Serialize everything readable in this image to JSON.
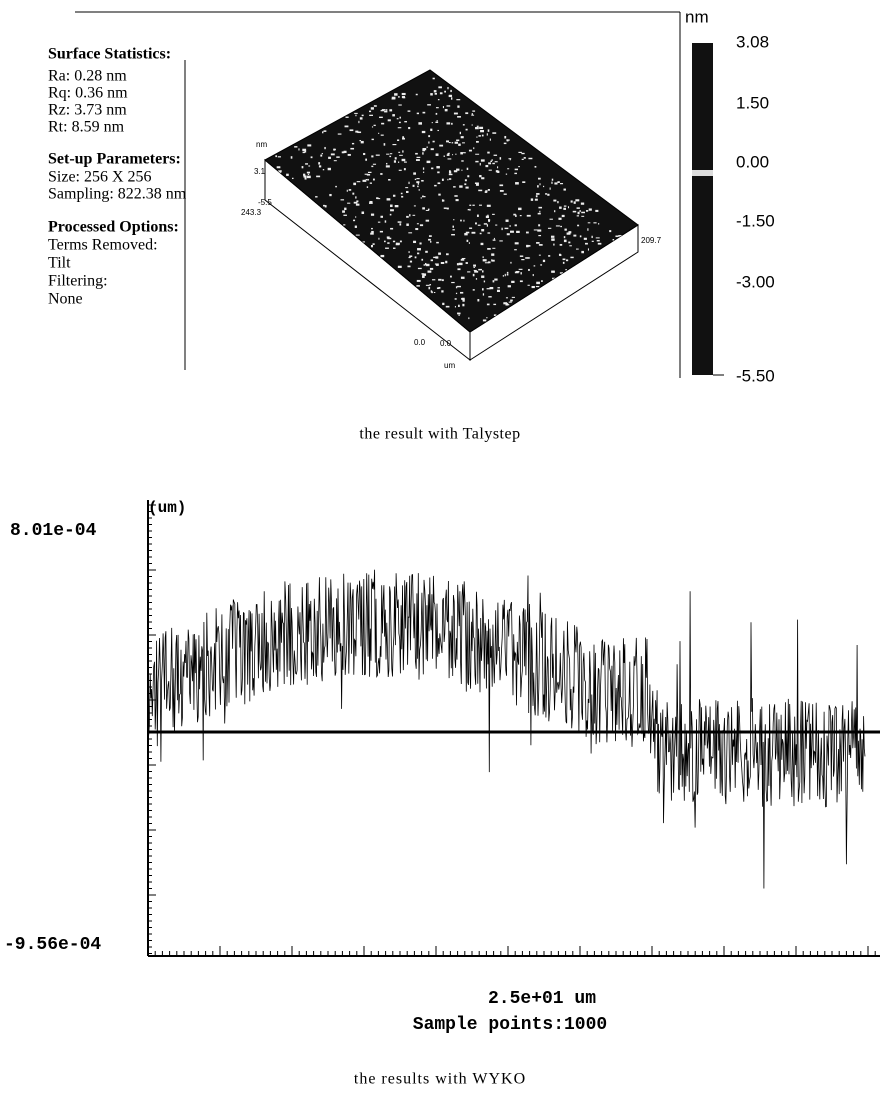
{
  "figure_top": {
    "stats_heading": "Surface Statistics:",
    "stats": [
      "Ra:  0.28 nm",
      "Rq:  0.36 nm",
      "Rz:  3.73 nm",
      "Rt:  8.59 nm"
    ],
    "setup_heading": "Set-up Parameters:",
    "setup": [
      "Size: 256 X 256",
      "Sampling:  822.38 nm"
    ],
    "options_heading": "Processed Options:",
    "options": [
      "Terms Removed:",
      "Tilt",
      "Filtering:",
      "None"
    ],
    "plot_labels": {
      "z_unit": "nm",
      "z_max": "3.1",
      "z_min": "-5.5",
      "y_max": "243.3",
      "x_max": "209.7",
      "y_origin": "0.0",
      "x_origin": "0.0",
      "xy_unit": "um"
    },
    "colorbar": {
      "unit": "nm",
      "labels": [
        "3.08",
        "1.50",
        "0.00",
        "-1.50",
        "-3.00",
        "-5.50"
      ]
    }
  },
  "caption_top": "the result with Talystep",
  "figure_bottom": {
    "y_unit": "(um)",
    "y_max": "8.01e-04",
    "y_min": "-9.56e-04",
    "x_label": "2.5e+01 um",
    "points_label": "Sample points:1000"
  },
  "caption_bottom": "the results with WYKO"
}
